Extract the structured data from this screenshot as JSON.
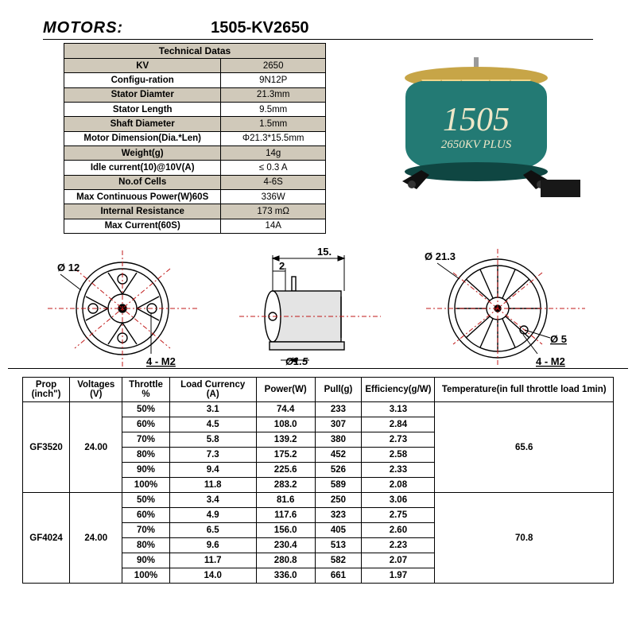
{
  "header": {
    "label": "MOTORS:",
    "model": "1505-KV2650"
  },
  "spec_table": {
    "title": "Technical Datas",
    "rows": [
      {
        "k": "KV",
        "v": "2650",
        "shade": true
      },
      {
        "k": "Configu-ration",
        "v": "9N12P",
        "shade": false
      },
      {
        "k": "Stator Diamter",
        "v": "21.3mm",
        "shade": true
      },
      {
        "k": "Stator Length",
        "v": "9.5mm",
        "shade": false
      },
      {
        "k": "Shaft Diameter",
        "v": "1.5mm",
        "shade": true
      },
      {
        "k": "Motor Dimension(Dia.*Len)",
        "v": "Φ21.3*15.5mm",
        "shade": false
      },
      {
        "k": "Weight(g)",
        "v": "14g",
        "shade": true
      },
      {
        "k": "Idle current(10)@10V(A)",
        "v": "≤ 0.3 A",
        "shade": false
      },
      {
        "k": "No.of Cells",
        "v": "4-6S",
        "shade": true
      },
      {
        "k": "Max Continuous Power(W)60S",
        "v": "336W",
        "shade": false
      },
      {
        "k": "Internal Resistance",
        "v": "173 mΩ",
        "shade": true
      },
      {
        "k": "Max Current(60S)",
        "v": "14A",
        "shade": false
      }
    ]
  },
  "motor_render": {
    "bell_color": "#237a74",
    "top_color": "#c7a547",
    "spoke_color": "#f0d58a",
    "text_color": "#efe7c8",
    "model_big": "1505",
    "model_small": "2650KV  PLUS"
  },
  "diagrams": {
    "line_color": "#000000",
    "center_color": "#c01818",
    "labels": {
      "left_dia": "Ø 12",
      "left_m2": "4 - M2",
      "side_len": "15.",
      "side_gap": "2",
      "side_shaft": "Ø1.5",
      "right_dia": "Ø 21.3",
      "right_bolt": "Ø 5",
      "right_m2": "4 - M2"
    }
  },
  "perf": {
    "headers": [
      "Prop (inch\")",
      "Voltages (V)",
      "Throttle %",
      "Load Currency (A)",
      "Power(W)",
      "Pull(g)",
      "Efficiency(g/W)",
      "Temperature(in full throttle load 1min)"
    ],
    "groups": [
      {
        "prop": "GF3520",
        "voltage": "24.00",
        "temp": "65.6",
        "rows": [
          {
            "thr": "50%",
            "cur": "3.1",
            "pow": "74.4",
            "pull": "233",
            "eff": "3.13"
          },
          {
            "thr": "60%",
            "cur": "4.5",
            "pow": "108.0",
            "pull": "307",
            "eff": "2.84"
          },
          {
            "thr": "70%",
            "cur": "5.8",
            "pow": "139.2",
            "pull": "380",
            "eff": "2.73"
          },
          {
            "thr": "80%",
            "cur": "7.3",
            "pow": "175.2",
            "pull": "452",
            "eff": "2.58"
          },
          {
            "thr": "90%",
            "cur": "9.4",
            "pow": "225.6",
            "pull": "526",
            "eff": "2.33"
          },
          {
            "thr": "100%",
            "cur": "11.8",
            "pow": "283.2",
            "pull": "589",
            "eff": "2.08"
          }
        ]
      },
      {
        "prop": "GF4024",
        "voltage": "24.00",
        "temp": "70.8",
        "rows": [
          {
            "thr": "50%",
            "cur": "3.4",
            "pow": "81.6",
            "pull": "250",
            "eff": "3.06"
          },
          {
            "thr": "60%",
            "cur": "4.9",
            "pow": "117.6",
            "pull": "323",
            "eff": "2.75"
          },
          {
            "thr": "70%",
            "cur": "6.5",
            "pow": "156.0",
            "pull": "405",
            "eff": "2.60"
          },
          {
            "thr": "80%",
            "cur": "9.6",
            "pow": "230.4",
            "pull": "513",
            "eff": "2.23"
          },
          {
            "thr": "90%",
            "cur": "11.7",
            "pow": "280.8",
            "pull": "582",
            "eff": "2.07"
          },
          {
            "thr": "100%",
            "cur": "14.0",
            "pow": "336.0",
            "pull": "661",
            "eff": "1.97"
          }
        ]
      }
    ]
  }
}
